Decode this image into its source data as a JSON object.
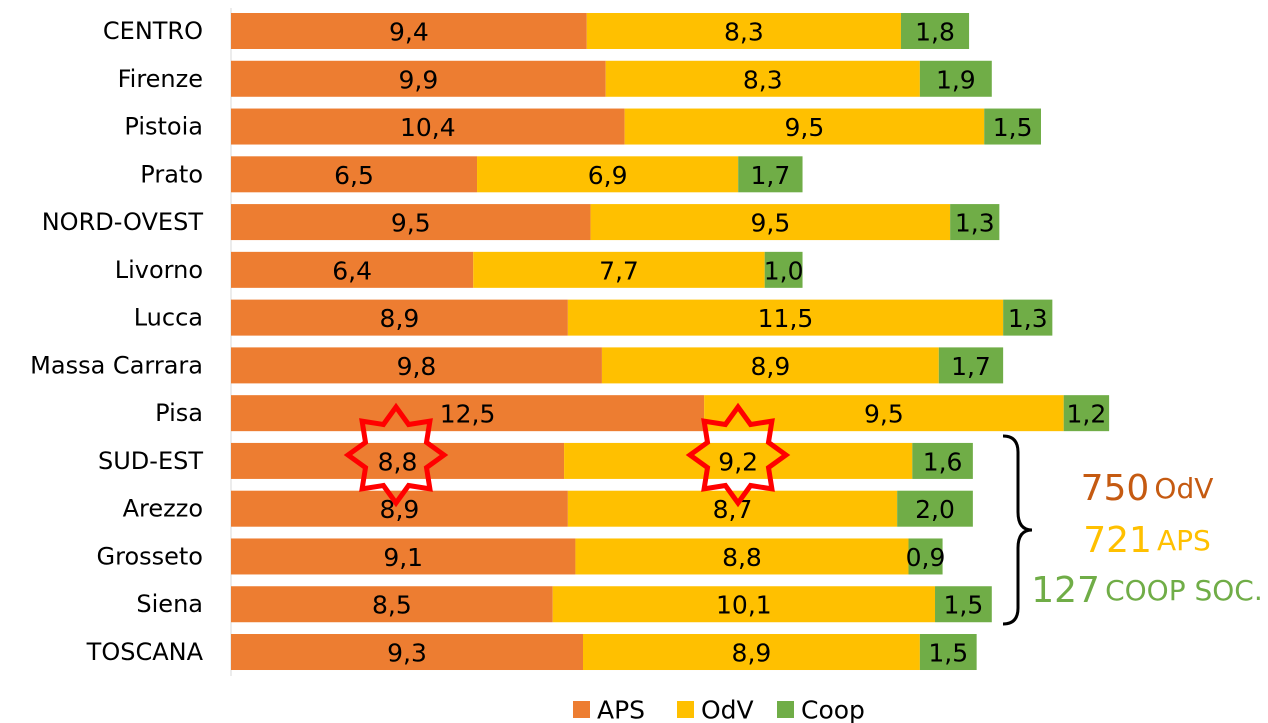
{
  "chart_data": {
    "type": "stacked-bar-horizontal",
    "categories": [
      "CENTRO",
      "Firenze",
      "Pistoia",
      "Prato",
      "NORD-OVEST",
      "Livorno",
      "Lucca",
      "Massa Carrara",
      "Pisa",
      "SUD-EST",
      "Arezzo",
      "Grosseto",
      "Siena",
      "TOSCANA"
    ],
    "series": [
      {
        "name": "APS",
        "color": "#ed7d31",
        "values": [
          9.4,
          9.9,
          10.4,
          6.5,
          9.5,
          6.4,
          8.9,
          9.8,
          12.5,
          8.8,
          8.9,
          9.1,
          8.5,
          9.3
        ],
        "value_labels": [
          "9,4",
          "9,9",
          "10,4",
          "6,5",
          "9,5",
          "6,4",
          "8,9",
          "9,8",
          "12,5",
          "8,8",
          "8,9",
          "9,1",
          "8,5",
          "9,3"
        ]
      },
      {
        "name": "OdV",
        "color": "#ffc000",
        "values": [
          8.3,
          8.3,
          9.5,
          6.9,
          9.5,
          7.7,
          11.5,
          8.9,
          9.5,
          9.2,
          8.7,
          8.8,
          10.1,
          8.9
        ],
        "value_labels": [
          "8,3",
          "8,3",
          "9,5",
          "6,9",
          "9,5",
          "7,7",
          "11,5",
          "8,9",
          "9,5",
          "9,2",
          "8,7",
          "8,8",
          "10,1",
          "8,9"
        ]
      },
      {
        "name": "Coop",
        "color": "#70ad47",
        "values": [
          1.8,
          1.9,
          1.5,
          1.7,
          1.3,
          1.0,
          1.3,
          1.7,
          1.2,
          1.6,
          2.0,
          0.9,
          1.5,
          1.5
        ],
        "value_labels": [
          "1,8",
          "1,9",
          "1,5",
          "1,7",
          "1,3",
          "1,0",
          "1,3",
          "1,7",
          "1,2",
          "1,6",
          "2,0",
          "0,9",
          "1,5",
          "1,5"
        ]
      }
    ],
    "annotations": [
      {
        "number": "750",
        "label": "OdV",
        "color": "#c55a11"
      },
      {
        "number": "721",
        "label": "APS",
        "color": "#ffc000"
      },
      {
        "number": "127",
        "label": "COOP SOC.",
        "color": "#70ad47"
      }
    ],
    "legend": "bottom"
  }
}
